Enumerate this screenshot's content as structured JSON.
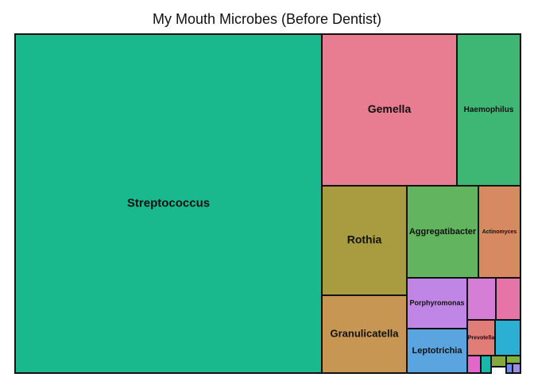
{
  "chart_data": {
    "type": "treemap",
    "title": "My Mouth Microbes (Before Dentist)",
    "tiles": [
      {
        "label": "Streptococcus",
        "value": 46.0,
        "color": "#1ab98d"
      },
      {
        "label": "Gemella",
        "value": 9.7,
        "color": "#e87d91"
      },
      {
        "label": "Haemophilus",
        "value": 6.2,
        "color": "#3eb774"
      },
      {
        "label": "Rothia",
        "value": 6.8,
        "color": "#a99c40"
      },
      {
        "label": "Granulicatella",
        "value": 5.6,
        "color": "#c69652"
      },
      {
        "label": "Aggregatibacter",
        "value": 3.8,
        "color": "#62b45e"
      },
      {
        "label": "Actinomyces",
        "value": 2.5,
        "color": "#d78a61"
      },
      {
        "label": "Porphyromonas",
        "value": 2.1,
        "color": "#bf86e6"
      },
      {
        "label": "Leptotrichia",
        "value": 1.8,
        "color": "#5aa5df"
      },
      {
        "label": "Prevotella",
        "value": 0.7,
        "color": "#df7d76"
      },
      {
        "label": "",
        "value": 0.9,
        "color": "#d67dd5"
      },
      {
        "label": "",
        "value": 0.8,
        "color": "#e774a7"
      },
      {
        "label": "",
        "value": 0.6,
        "color": "#2bb0d4"
      },
      {
        "label": "",
        "value": 0.15,
        "color": "#e367c8"
      },
      {
        "label": "",
        "value": 0.15,
        "color": "#19b8aa"
      },
      {
        "label": "",
        "value": 0.1,
        "color": "#86a93e"
      },
      {
        "label": "",
        "value": 0.06,
        "color": "#6b8ef0"
      },
      {
        "label": "",
        "value": 0.06,
        "color": "#9f8de6"
      },
      {
        "label": "",
        "value": 0.1,
        "color": "#7fb23a"
      }
    ]
  }
}
